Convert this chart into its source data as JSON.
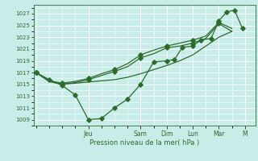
{
  "background_color": "#c8ece8",
  "grid_color": "#b0d8d0",
  "line_color": "#2d6b2d",
  "xlabel": "Pression niveau de la mer( hPa )",
  "ylim": [
    1008.0,
    1028.5
  ],
  "yticks": [
    1009,
    1011,
    1013,
    1015,
    1017,
    1019,
    1021,
    1023,
    1025,
    1027
  ],
  "day_labels": [
    "Jeu",
    "Sam",
    "Dim",
    "Lun",
    "Mar",
    "M"
  ],
  "day_positions": [
    2.0,
    4.0,
    5.0,
    6.0,
    7.0,
    8.0
  ],
  "xlim": [
    -0.1,
    8.4
  ],
  "series_straight_x": [
    0,
    0.5,
    1.0,
    1.5,
    2.0,
    2.5,
    3.0,
    3.5,
    4.0,
    4.5,
    5.0,
    5.5,
    6.0,
    6.5,
    7.0,
    7.5
  ],
  "series_straight_y": [
    1017.0,
    1015.5,
    1015.0,
    1015.2,
    1015.4,
    1015.6,
    1015.8,
    1016.2,
    1016.8,
    1017.5,
    1018.2,
    1019.0,
    1020.0,
    1021.5,
    1023.0,
    1024.0
  ],
  "series_wiggly_x": [
    0,
    0.5,
    1.0,
    1.5,
    2.0,
    2.5,
    3.0,
    3.5,
    4.0,
    4.5,
    5.0,
    5.3,
    5.6,
    6.0,
    6.3,
    6.7,
    7.0,
    7.3,
    7.6,
    7.9
  ],
  "series_wiggly_y": [
    1017.0,
    1015.8,
    1014.8,
    1013.2,
    1009.0,
    1009.2,
    1011.0,
    1012.5,
    1015.0,
    1018.8,
    1019.0,
    1019.2,
    1021.3,
    1021.5,
    1022.5,
    1022.8,
    1025.8,
    1027.3,
    1027.6,
    1024.5
  ],
  "series_mid1_x": [
    0,
    0.5,
    1.0,
    1.5,
    2.0,
    2.5,
    3.0,
    3.5,
    4.0,
    4.5,
    5.0,
    5.5,
    6.0,
    6.5,
    7.0,
    7.5
  ],
  "series_mid1_y": [
    1017.0,
    1015.5,
    1015.0,
    1015.3,
    1015.8,
    1016.5,
    1017.2,
    1018.0,
    1019.5,
    1020.2,
    1021.2,
    1021.5,
    1022.0,
    1022.8,
    1025.3,
    1024.0
  ],
  "series_mid2_x": [
    0,
    0.5,
    1.0,
    1.5,
    2.0,
    2.5,
    3.0,
    3.5,
    4.0,
    4.5,
    5.0,
    5.5,
    6.0,
    6.5,
    7.0,
    7.5
  ],
  "series_mid2_y": [
    1017.0,
    1015.6,
    1015.2,
    1015.5,
    1016.0,
    1016.8,
    1017.5,
    1018.5,
    1020.0,
    1020.8,
    1021.5,
    1022.0,
    1022.5,
    1023.2,
    1025.5,
    1024.5
  ],
  "figsize": [
    3.2,
    2.0
  ],
  "dpi": 100
}
